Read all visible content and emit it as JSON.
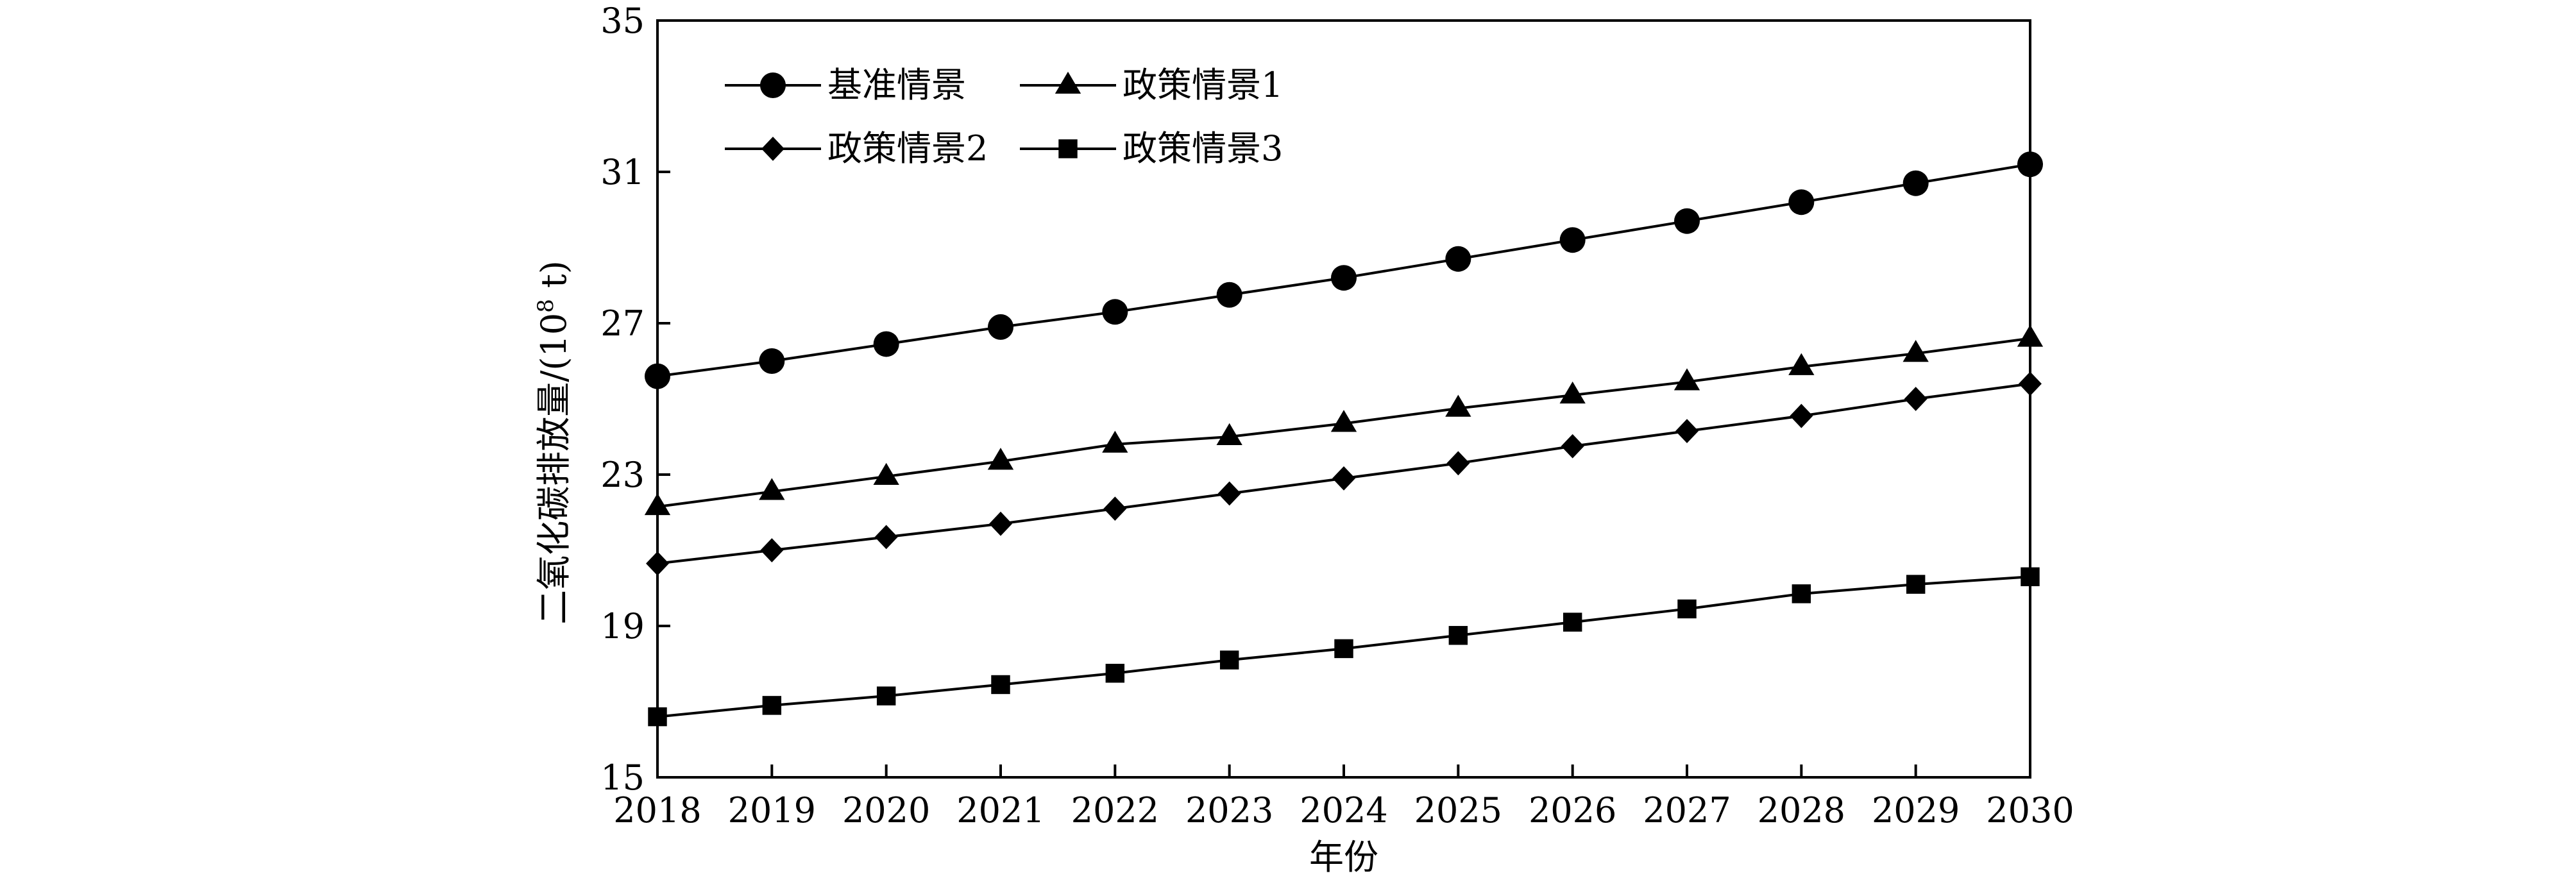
{
  "chart_data": {
    "type": "line",
    "title": "",
    "xlabel": "年份",
    "ylabel": "二氧化碳排放量/(10",
    "ylabel_sup": "8",
    "ylabel_tail": " t)",
    "x": [
      2018,
      2019,
      2020,
      2021,
      2022,
      2023,
      2024,
      2025,
      2026,
      2027,
      2028,
      2029,
      2030
    ],
    "xlim": [
      2018,
      2030
    ],
    "ylim": [
      15,
      35
    ],
    "yticks": [
      15,
      19,
      23,
      27,
      31,
      35
    ],
    "grid": false,
    "legend_position": "top-left",
    "series": [
      {
        "name": "基准情景",
        "marker": "circle",
        "values": [
          25.6,
          26.0,
          26.45,
          26.9,
          27.3,
          27.75,
          28.2,
          28.7,
          29.2,
          29.7,
          30.2,
          30.7,
          31.2
        ]
      },
      {
        "name": "政策情景1",
        "marker": "triangle",
        "values": [
          22.15,
          22.55,
          22.95,
          23.35,
          23.8,
          24.0,
          24.35,
          24.75,
          25.1,
          25.45,
          25.85,
          26.2,
          26.6
        ]
      },
      {
        "name": "政策情景2",
        "marker": "diamond",
        "values": [
          20.65,
          21.0,
          21.35,
          21.7,
          22.1,
          22.5,
          22.9,
          23.3,
          23.75,
          24.15,
          24.55,
          25.0,
          25.4
        ]
      },
      {
        "name": "政策情景3",
        "marker": "square",
        "values": [
          16.6,
          16.9,
          17.15,
          17.45,
          17.75,
          18.1,
          18.4,
          18.75,
          19.1,
          19.45,
          19.85,
          20.1,
          20.3
        ]
      }
    ],
    "colors": {
      "line": "#000000",
      "marker": "#000000",
      "background": "#ffffff"
    }
  }
}
